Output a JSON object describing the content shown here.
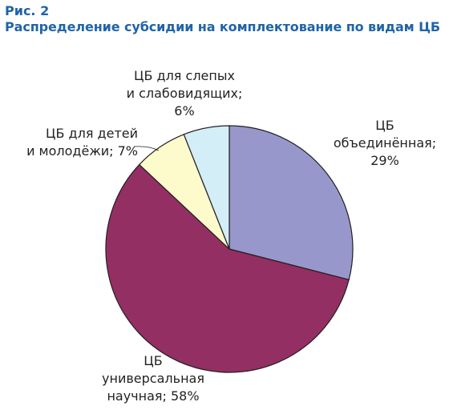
{
  "figure": {
    "label": "Рис. 2",
    "title": "Распределение субсидии на комплектование по видам ЦБ"
  },
  "chart_data": {
    "type": "pie",
    "start_angle_deg": 0,
    "direction": "clockwise",
    "slices": [
      {
        "name_lines": [
          "ЦБ",
          "объединённая;"
        ],
        "value_label": "29%",
        "value": 29,
        "color": "#9897cc"
      },
      {
        "name_lines": [
          "ЦБ",
          "универсальная"
        ],
        "value_label": "научная; 58%",
        "value": 58,
        "color": "#932f62"
      },
      {
        "name_lines": [
          "ЦБ для детей"
        ],
        "value_label": "и молодёжи; 7%",
        "value": 7,
        "color": "#fdfacc"
      },
      {
        "name_lines": [
          "ЦБ для слепых",
          "и слабовидящих;"
        ],
        "value_label": "6%",
        "value": 6,
        "color": "#d3eef7"
      }
    ]
  }
}
